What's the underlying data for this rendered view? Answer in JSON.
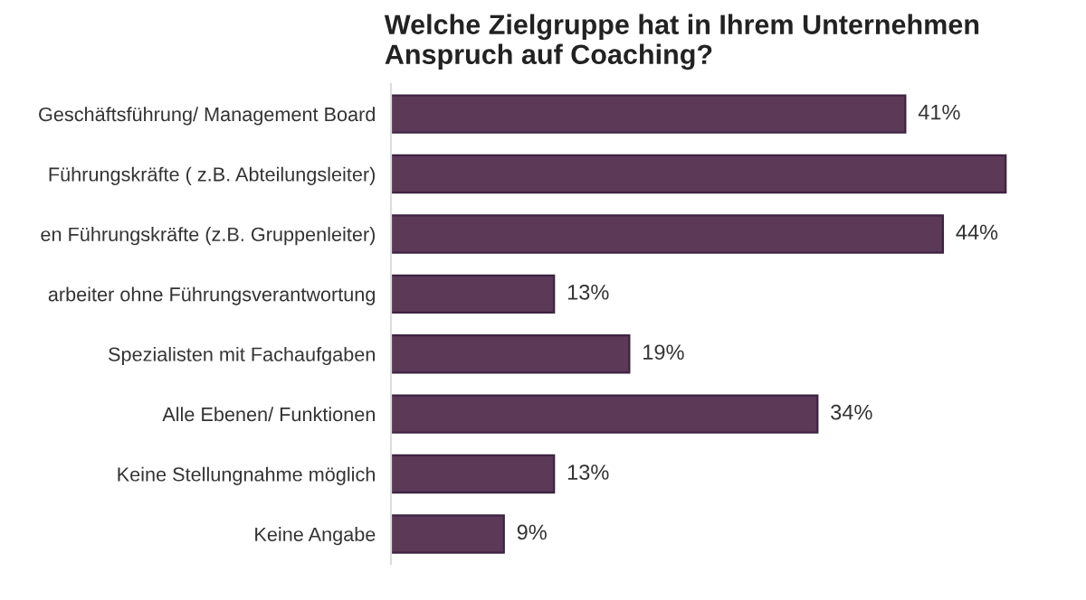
{
  "chart_data": {
    "type": "bar",
    "orientation": "horizontal",
    "title": "Welche Zielgruppe hat in Ihrem Unternehmen\nAnspruch auf Coaching?",
    "categories": [
      "Geschäftsführung/ Management Board",
      "Führungskräfte ( z.B. Abteilungsleiter)",
      "en Führungskräfte (z.B. Gruppenleiter)",
      "arbeiter ohne Führungsverantwortung",
      "Spezialisten mit Fachaufgaben",
      "Alle Ebenen/ Funktionen",
      "Keine Stellungnahme möglich",
      "Keine Angabe"
    ],
    "values": [
      41,
      49,
      44,
      13,
      19,
      34,
      13,
      9
    ],
    "value_labels": [
      "41%",
      null,
      "44%",
      "13%",
      "19%",
      "34%",
      "13%",
      "9%"
    ],
    "color": "#5b3957",
    "grid": false,
    "legend": false
  }
}
